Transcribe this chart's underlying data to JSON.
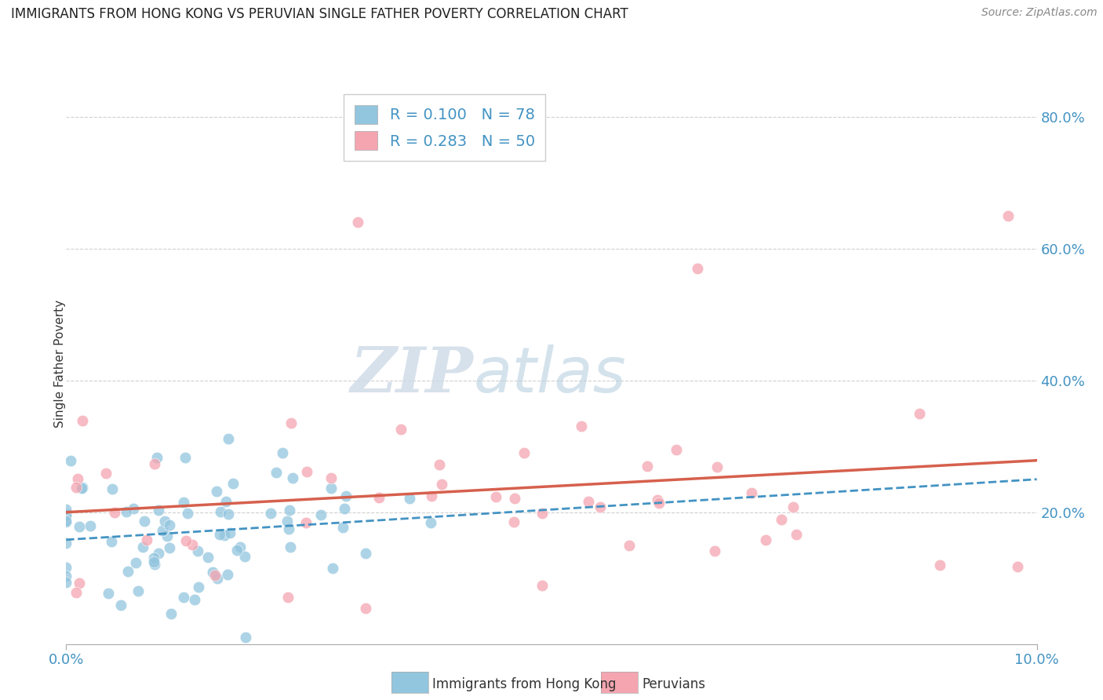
{
  "title": "IMMIGRANTS FROM HONG KONG VS PERUVIAN SINGLE FATHER POVERTY CORRELATION CHART",
  "source": "Source: ZipAtlas.com",
  "ylabel": "Single Father Poverty",
  "ylabel_right_ticks": [
    "80.0%",
    "60.0%",
    "40.0%",
    "20.0%"
  ],
  "ylabel_right_vals": [
    0.8,
    0.6,
    0.4,
    0.2
  ],
  "hk_color": "#92c5de",
  "peru_color": "#f4a5b0",
  "hk_trend_color": "#4393c3",
  "peru_trend_color": "#d6604d",
  "background_color": "#ffffff",
  "watermark_zip": "ZIP",
  "watermark_atlas": "atlas",
  "grid_color": "#d0d0d0",
  "xlim": [
    0.0,
    0.1
  ],
  "ylim": [
    0.0,
    0.85
  ],
  "hk_R": 0.1,
  "hk_N": 78,
  "peru_R": 0.283,
  "peru_N": 50
}
